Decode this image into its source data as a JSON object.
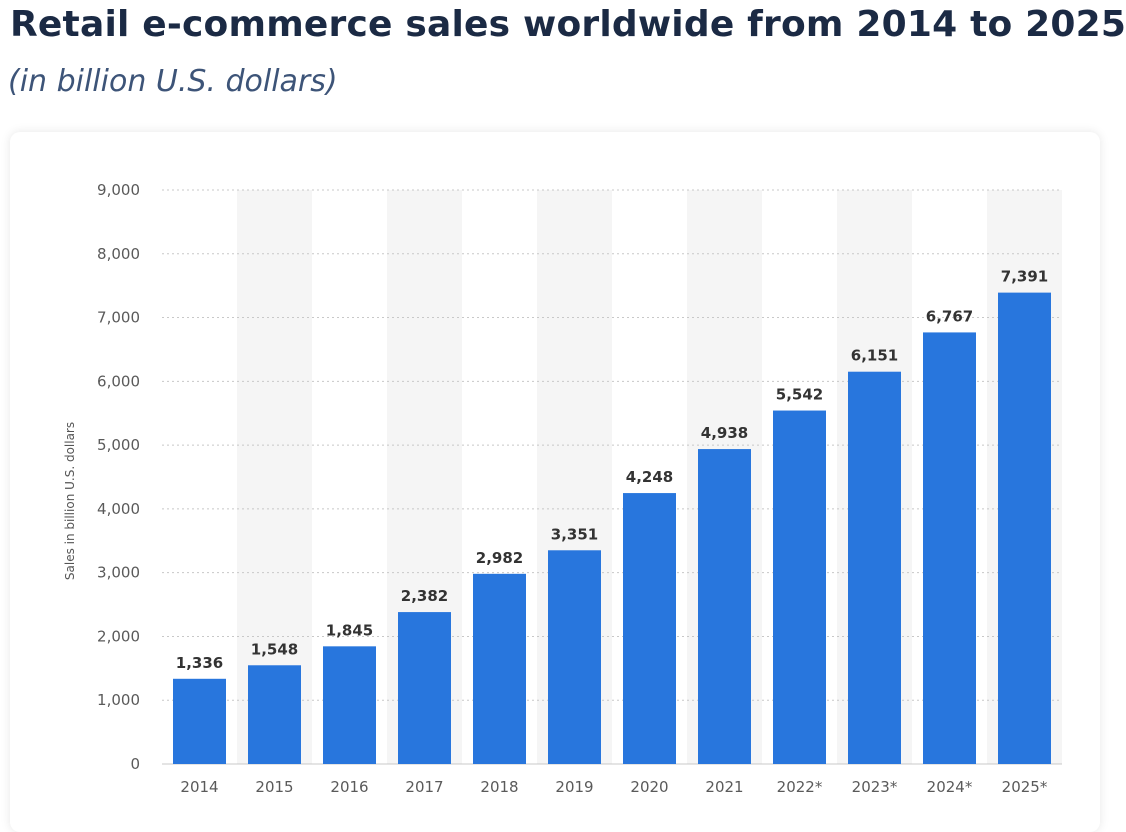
{
  "header": {
    "title": "Retail e-commerce sales worldwide from 2014 to 2025",
    "subtitle": "(in billion U.S. dollars)"
  },
  "colors": {
    "bar": "#2876dd",
    "band": "#f5f5f5",
    "grid": "#c8c8c8",
    "title": "#1b2a44",
    "subtitle": "#3d5478"
  },
  "chart_data": {
    "type": "bar",
    "title": "Retail e-commerce sales worldwide from 2014 to 2025",
    "subtitle": "(in billion U.S. dollars)",
    "xlabel": "",
    "ylabel": "Sales in billion U.S. dollars",
    "categories": [
      "2014",
      "2015",
      "2016",
      "2017",
      "2018",
      "2019",
      "2020",
      "2021",
      "2022*",
      "2023*",
      "2024*",
      "2025*"
    ],
    "values": [
      1336,
      1548,
      1845,
      2382,
      2982,
      3351,
      4248,
      4938,
      5542,
      6151,
      6767,
      7391
    ],
    "value_labels": [
      "1,336",
      "1,548",
      "1,845",
      "2,382",
      "2,982",
      "3,351",
      "4,248",
      "4,938",
      "5,542",
      "6,151",
      "6,767",
      "7,391"
    ],
    "yticks": [
      0,
      1000,
      2000,
      3000,
      4000,
      5000,
      6000,
      7000,
      8000,
      9000
    ],
    "ytick_labels": [
      "0",
      "1,000",
      "2,000",
      "3,000",
      "4,000",
      "5,000",
      "6,000",
      "7,000",
      "8,000",
      "9,000"
    ],
    "ylim": [
      0,
      9000
    ],
    "grid": true,
    "legend": "none"
  }
}
